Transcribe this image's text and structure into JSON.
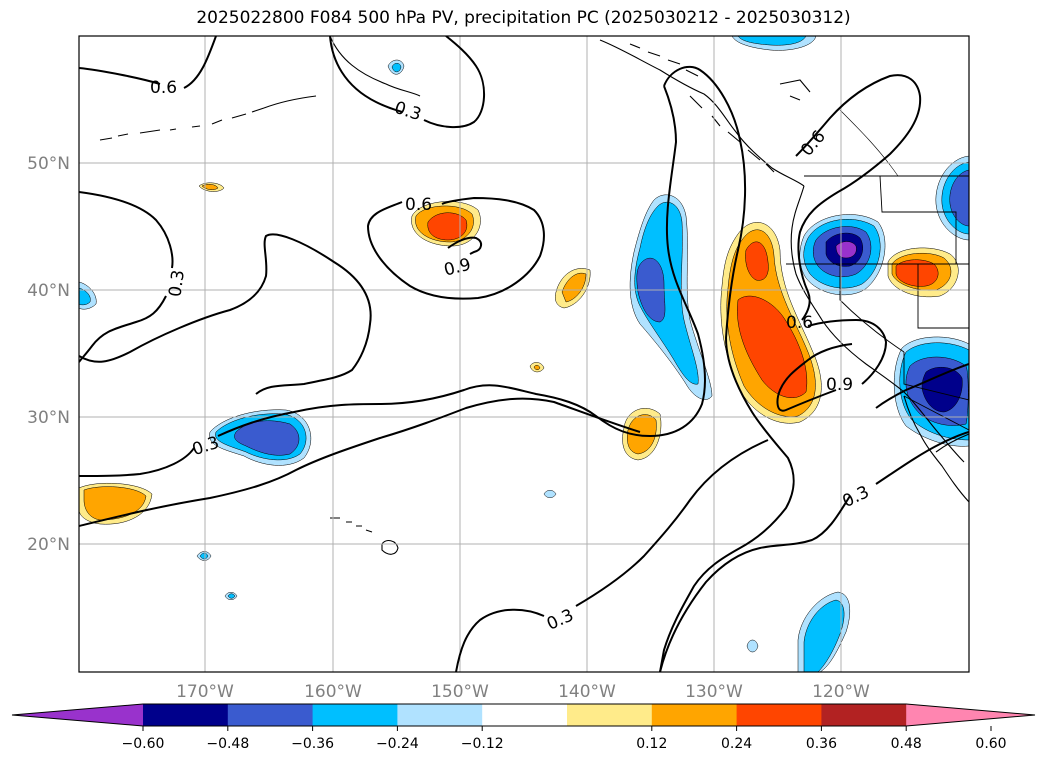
{
  "title": "2025022800 F084 500 hPa PV, precipitation PC (2025030212 - 2025030312)",
  "map": {
    "lat_labels": [
      "50°N",
      "40°N",
      "30°N",
      "20°N"
    ],
    "lon_labels": [
      "170°W",
      "160°W",
      "150°W",
      "140°W",
      "130°W",
      "120°W"
    ],
    "contour_labels": [
      "0.6",
      "0.3",
      "0.3",
      "0.6",
      "0.9",
      "0.6",
      "0.6",
      "0.9",
      "0.3",
      "0.3",
      "0.3"
    ]
  },
  "colorbar": {
    "ticks": [
      "−0.60",
      "−0.48",
      "−0.36",
      "−0.24",
      "−0.12",
      "0.12",
      "0.24",
      "0.36",
      "0.48",
      "0.60"
    ],
    "colors": [
      "#9932cc",
      "#00008b",
      "#3a5bcf",
      "#00bfff",
      "#b0e2ff",
      "#ffffff",
      "#ffeb8a",
      "#ffa500",
      "#ff4500",
      "#b22222",
      "#ff85b0"
    ]
  },
  "colors": {
    "contour": "#000000",
    "grid": "#b0b0b0",
    "axis_label": "#808080"
  }
}
